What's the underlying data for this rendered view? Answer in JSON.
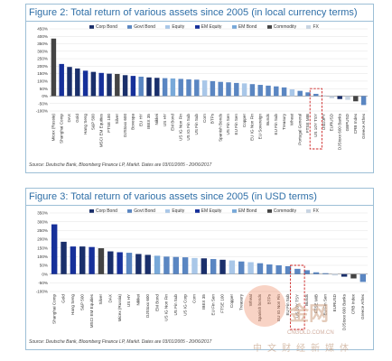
{
  "legend_labels": {
    "corp": "Corp Bond",
    "govt": "Govt Bond",
    "equity": "Equity",
    "emequity": "EM Equity",
    "embond": "EM Bond",
    "commodity": "Commodity",
    "fx": "FX"
  },
  "category_colors": {
    "corp": "#1a2f6b",
    "govt": "#5a86c2",
    "equity": "#a9c7e8",
    "emequity": "#16309a",
    "embond": "#78a9d9",
    "commodity": "#444444",
    "fx": "#c8d4e2"
  },
  "highlight_color": "#cc2222",
  "chart_data": [
    {
      "type": "bar",
      "title": "Figure 2: Total return of various assets since 2005 (in local currency terms)",
      "source": "Source: Deutsche Bank, Bloomberg Finance LP, Markit. Dates are 03/01/2005 - 20/06/2017",
      "ylim": [
        -100,
        450
      ],
      "yticks": [
        "450%",
        "400%",
        "350%",
        "300%",
        "250%",
        "200%",
        "150%",
        "100%",
        "50%",
        "0%",
        "-50%",
        "-100%"
      ],
      "highlight_category": "US 10Y TSY",
      "categories": [
        "Micex (Russia)",
        "Shanghai Comp",
        "DAX",
        "Gold",
        "Hang Seng",
        "S&P 500",
        "MSCI EM Equities",
        "FTSE 100",
        "Silver",
        "DJStoxx 600",
        "Bovespa",
        "EU HY",
        "IBEX 35",
        "Nikkei",
        "US HY",
        "EM Bond",
        "US IG Non Fin",
        "US IG Fin Sub",
        "US Fin Sub",
        "Corn",
        "BTPs",
        "Spanish Bonds",
        "US Fin Sen",
        "EU Fin Sen",
        "Copper",
        "EU IG Non Fin",
        "EU Sovereign",
        "Bunds",
        "EU Fin Sub",
        "Treasury",
        "Wheat",
        "Portugal General",
        "FTSE MIB",
        "US 10Y TSY",
        "USDJPY",
        "EURUSD",
        "DJStoxx 600 Banks",
        "GBPUSD",
        "CRB Index",
        "Greece Athex"
      ],
      "groups": [
        "commodity",
        "emequity",
        "corp",
        "corp",
        "emequity",
        "corp",
        "emequity",
        "corp",
        "commodity",
        "corp",
        "emequity",
        "govt",
        "corp",
        "corp",
        "govt",
        "embond",
        "govt",
        "govt",
        "govt",
        "equity",
        "govt",
        "govt",
        "govt",
        "govt",
        "equity",
        "govt",
        "govt",
        "govt",
        "govt",
        "govt",
        "equity",
        "govt",
        "govt",
        "govt",
        "fx",
        "fx",
        "corp",
        "fx",
        "commodity",
        "govt"
      ],
      "values": [
        385,
        215,
        195,
        185,
        170,
        162,
        155,
        150,
        148,
        140,
        135,
        130,
        125,
        122,
        120,
        118,
        115,
        112,
        110,
        105,
        100,
        95,
        92,
        88,
        85,
        80,
        75,
        70,
        65,
        58,
        45,
        35,
        25,
        15,
        5,
        -15,
        -20,
        -25,
        -35,
        -60
      ]
    },
    {
      "type": "bar",
      "title": "Figure 3: Total return of various assets since 2005 (in USD terms)",
      "source": "Source: Deutsche Bank, Bloomberg Finance LP, Markit. Dates are 03/01/2005 - 20/06/2017",
      "ylim": [
        -100,
        350
      ],
      "yticks": [
        "350%",
        "300%",
        "250%",
        "200%",
        "150%",
        "100%",
        "50%",
        "0%",
        "-50%",
        "-100%"
      ],
      "highlight_category": "US 10Y TSY",
      "categories": [
        "Shanghai Comp",
        "Gold",
        "Hang Seng",
        "S&P 500",
        "MSCI EM Equities",
        "Silver",
        "DAX",
        "Micex (Russia)",
        "US HY",
        "Nikkei",
        "DJStoxx 600",
        "EM Bond",
        "US IG Non Fin",
        "US Fin Sub",
        "US IG Corp",
        "Corn",
        "IBEX 35",
        "EU Fin Sen",
        "FTSE 100",
        "Copper",
        "Treasury",
        "Wheat",
        "Spanish bonds",
        "BTPs",
        "EU IG Non Fin",
        "EU Fin Sub",
        "US 10Y TSY",
        "Bunds",
        "FTSE MIB",
        "EU Fin Sen",
        "EURUSD",
        "DJStoxx 600 Banks",
        "CRB Index",
        "Greece Athex"
      ],
      "groups": [
        "emequity",
        "corp",
        "emequity",
        "corp",
        "emequity",
        "commodity",
        "corp",
        "emequity",
        "govt",
        "corp",
        "corp",
        "embond",
        "govt",
        "govt",
        "govt",
        "equity",
        "corp",
        "govt",
        "corp",
        "equity",
        "govt",
        "equity",
        "govt",
        "govt",
        "govt",
        "govt",
        "govt",
        "govt",
        "govt",
        "govt",
        "fx",
        "corp",
        "commodity",
        "govt"
      ],
      "values": [
        285,
        185,
        158,
        158,
        155,
        148,
        130,
        125,
        122,
        115,
        110,
        105,
        100,
        98,
        96,
        92,
        90,
        86,
        82,
        78,
        72,
        68,
        62,
        55,
        50,
        45,
        30,
        22,
        10,
        5,
        -8,
        -15,
        -25,
        -45
      ]
    }
  ],
  "watermark": {
    "text": "金网",
    "url": "CNGOLD.COM.CN",
    "cn": "中文财经新媒体"
  }
}
